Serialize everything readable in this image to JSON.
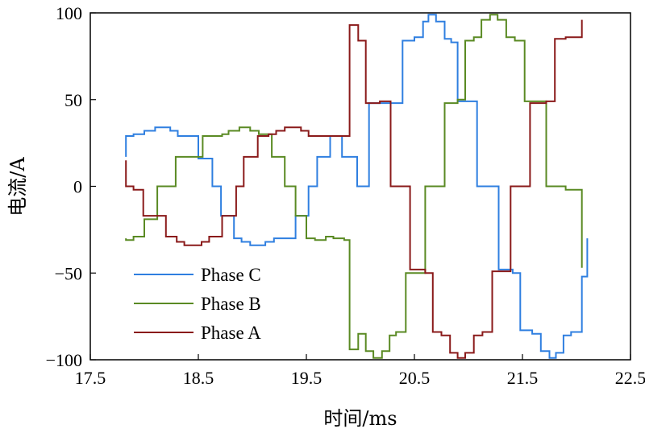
{
  "chart_data": {
    "type": "line",
    "title": "",
    "xlabel": "时间/ms",
    "ylabel": "电流/A",
    "xlim": [
      17.5,
      22.5
    ],
    "ylim": [
      -100,
      100
    ],
    "xticks": [
      "17.5",
      "18.5",
      "19.5",
      "20.5",
      "21.5",
      "22.5"
    ],
    "yticks": [
      "100",
      "50",
      "0",
      "−50",
      "−100"
    ],
    "grid": false,
    "legend_position": "bottom-left",
    "series": [
      {
        "name": "Phase C",
        "color": "#2f7fe0",
        "points": [
          [
            17.83,
            17
          ],
          [
            17.83,
            29
          ],
          [
            17.9,
            29
          ],
          [
            17.9,
            30
          ],
          [
            18.0,
            30
          ],
          [
            18.0,
            32
          ],
          [
            18.1,
            32
          ],
          [
            18.1,
            34
          ],
          [
            18.24,
            34
          ],
          [
            18.24,
            32
          ],
          [
            18.31,
            32
          ],
          [
            18.31,
            29
          ],
          [
            18.5,
            29
          ],
          [
            18.5,
            16
          ],
          [
            18.63,
            16
          ],
          [
            18.63,
            0
          ],
          [
            18.71,
            0
          ],
          [
            18.71,
            -17
          ],
          [
            18.83,
            -17
          ],
          [
            18.83,
            -30
          ],
          [
            18.9,
            -30
          ],
          [
            18.9,
            -32
          ],
          [
            18.98,
            -32
          ],
          [
            18.98,
            -34
          ],
          [
            19.12,
            -34
          ],
          [
            19.12,
            -32
          ],
          [
            19.2,
            -32
          ],
          [
            19.2,
            -30
          ],
          [
            19.4,
            -30
          ],
          [
            19.4,
            -17
          ],
          [
            19.52,
            -17
          ],
          [
            19.52,
            0
          ],
          [
            19.6,
            0
          ],
          [
            19.6,
            17
          ],
          [
            19.72,
            17
          ],
          [
            19.72,
            29
          ],
          [
            19.83,
            29
          ],
          [
            19.83,
            17
          ],
          [
            19.97,
            17
          ],
          [
            19.97,
            0
          ],
          [
            20.08,
            0
          ],
          [
            20.08,
            48
          ],
          [
            20.2,
            48
          ],
          [
            20.2,
            48
          ],
          [
            20.39,
            48
          ],
          [
            20.39,
            84
          ],
          [
            20.5,
            84
          ],
          [
            20.5,
            86
          ],
          [
            20.58,
            86
          ],
          [
            20.58,
            95
          ],
          [
            20.63,
            95
          ],
          [
            20.63,
            99
          ],
          [
            20.7,
            99
          ],
          [
            20.7,
            95
          ],
          [
            20.78,
            95
          ],
          [
            20.78,
            85
          ],
          [
            20.84,
            85
          ],
          [
            20.84,
            83
          ],
          [
            20.9,
            83
          ],
          [
            20.9,
            49
          ],
          [
            21.08,
            49
          ],
          [
            21.08,
            0
          ],
          [
            21.28,
            0
          ],
          [
            21.28,
            -48
          ],
          [
            21.41,
            -48
          ],
          [
            21.41,
            -50
          ],
          [
            21.48,
            -50
          ],
          [
            21.48,
            -83
          ],
          [
            21.59,
            -83
          ],
          [
            21.59,
            -85
          ],
          [
            21.67,
            -85
          ],
          [
            21.67,
            -95
          ],
          [
            21.75,
            -95
          ],
          [
            21.75,
            -99
          ],
          [
            21.81,
            -99
          ],
          [
            21.81,
            -96
          ],
          [
            21.88,
            -96
          ],
          [
            21.88,
            -86
          ],
          [
            21.95,
            -86
          ],
          [
            21.95,
            -84
          ],
          [
            22.05,
            -84
          ],
          [
            22.05,
            -52
          ],
          [
            22.1,
            -52
          ],
          [
            22.1,
            -30
          ]
        ]
      },
      {
        "name": "Phase B",
        "color": "#5a8a23",
        "points": [
          [
            17.83,
            -30
          ],
          [
            17.83,
            -31
          ],
          [
            17.9,
            -31
          ],
          [
            17.9,
            -29
          ],
          [
            18.0,
            -29
          ],
          [
            18.0,
            -19
          ],
          [
            18.12,
            -19
          ],
          [
            18.12,
            0
          ],
          [
            18.2,
            0
          ],
          [
            18.2,
            0
          ],
          [
            18.29,
            0
          ],
          [
            18.29,
            17
          ],
          [
            18.43,
            17
          ],
          [
            18.43,
            17
          ],
          [
            18.54,
            17
          ],
          [
            18.54,
            29
          ],
          [
            18.62,
            29
          ],
          [
            18.62,
            29
          ],
          [
            18.72,
            29
          ],
          [
            18.72,
            30
          ],
          [
            18.78,
            30
          ],
          [
            18.78,
            32
          ],
          [
            18.88,
            32
          ],
          [
            18.88,
            34
          ],
          [
            18.98,
            34
          ],
          [
            18.98,
            32
          ],
          [
            19.06,
            32
          ],
          [
            19.06,
            30
          ],
          [
            19.18,
            30
          ],
          [
            19.18,
            17
          ],
          [
            19.3,
            17
          ],
          [
            19.3,
            0
          ],
          [
            19.4,
            0
          ],
          [
            19.4,
            -17
          ],
          [
            19.5,
            -17
          ],
          [
            19.5,
            -30
          ],
          [
            19.58,
            -30
          ],
          [
            19.58,
            -31
          ],
          [
            19.68,
            -31
          ],
          [
            19.68,
            -29
          ],
          [
            19.75,
            -29
          ],
          [
            19.75,
            -30
          ],
          [
            19.85,
            -30
          ],
          [
            19.85,
            -31
          ],
          [
            19.9,
            -31
          ],
          [
            19.9,
            -94
          ],
          [
            19.98,
            -94
          ],
          [
            19.98,
            -85
          ],
          [
            20.05,
            -85
          ],
          [
            20.05,
            -95
          ],
          [
            20.12,
            -95
          ],
          [
            20.12,
            -99
          ],
          [
            20.2,
            -99
          ],
          [
            20.2,
            -95
          ],
          [
            20.27,
            -95
          ],
          [
            20.27,
            -86
          ],
          [
            20.33,
            -86
          ],
          [
            20.33,
            -84
          ],
          [
            20.42,
            -84
          ],
          [
            20.42,
            -50
          ],
          [
            20.6,
            -50
          ],
          [
            20.6,
            0
          ],
          [
            20.78,
            0
          ],
          [
            20.78,
            48
          ],
          [
            20.9,
            48
          ],
          [
            20.9,
            50
          ],
          [
            20.97,
            50
          ],
          [
            20.97,
            84
          ],
          [
            21.05,
            84
          ],
          [
            21.05,
            86
          ],
          [
            21.12,
            86
          ],
          [
            21.12,
            96
          ],
          [
            21.2,
            96
          ],
          [
            21.2,
            99
          ],
          [
            21.27,
            99
          ],
          [
            21.27,
            96
          ],
          [
            21.35,
            96
          ],
          [
            21.35,
            86
          ],
          [
            21.43,
            86
          ],
          [
            21.43,
            84
          ],
          [
            21.52,
            84
          ],
          [
            21.52,
            49
          ],
          [
            21.72,
            49
          ],
          [
            21.72,
            0
          ],
          [
            21.9,
            0
          ],
          [
            21.9,
            -2
          ],
          [
            22.05,
            -2
          ],
          [
            22.05,
            -47
          ]
        ]
      },
      {
        "name": "Phase A",
        "color": "#8a1a1a",
        "points": [
          [
            17.83,
            15
          ],
          [
            17.83,
            0
          ],
          [
            17.9,
            0
          ],
          [
            17.9,
            -2
          ],
          [
            17.99,
            -2
          ],
          [
            17.99,
            -17
          ],
          [
            18.08,
            -17
          ],
          [
            18.08,
            -17
          ],
          [
            18.2,
            -17
          ],
          [
            18.2,
            -29
          ],
          [
            18.3,
            -29
          ],
          [
            18.3,
            -32
          ],
          [
            18.37,
            -32
          ],
          [
            18.37,
            -34
          ],
          [
            18.53,
            -34
          ],
          [
            18.53,
            -32
          ],
          [
            18.6,
            -32
          ],
          [
            18.6,
            -29
          ],
          [
            18.72,
            -29
          ],
          [
            18.72,
            -17
          ],
          [
            18.85,
            -17
          ],
          [
            18.85,
            0
          ],
          [
            18.92,
            0
          ],
          [
            18.92,
            17
          ],
          [
            19.05,
            17
          ],
          [
            19.05,
            29
          ],
          [
            19.15,
            29
          ],
          [
            19.15,
            30
          ],
          [
            19.22,
            30
          ],
          [
            19.22,
            32
          ],
          [
            19.3,
            32
          ],
          [
            19.3,
            34
          ],
          [
            19.45,
            34
          ],
          [
            19.45,
            32
          ],
          [
            19.52,
            32
          ],
          [
            19.52,
            29
          ],
          [
            19.63,
            29
          ],
          [
            19.63,
            29
          ],
          [
            19.75,
            29
          ],
          [
            19.75,
            29
          ],
          [
            19.87,
            29
          ],
          [
            19.87,
            29
          ],
          [
            19.9,
            29
          ],
          [
            19.9,
            93
          ],
          [
            19.98,
            93
          ],
          [
            19.98,
            84
          ],
          [
            20.05,
            84
          ],
          [
            20.05,
            48
          ],
          [
            20.18,
            48
          ],
          [
            20.18,
            49
          ],
          [
            20.28,
            49
          ],
          [
            20.28,
            0
          ],
          [
            20.46,
            0
          ],
          [
            20.46,
            -48
          ],
          [
            20.6,
            -48
          ],
          [
            20.6,
            -50
          ],
          [
            20.67,
            -50
          ],
          [
            20.67,
            -84
          ],
          [
            20.75,
            -84
          ],
          [
            20.75,
            -86
          ],
          [
            20.83,
            -86
          ],
          [
            20.83,
            -96
          ],
          [
            20.9,
            -96
          ],
          [
            20.9,
            -99
          ],
          [
            20.97,
            -99
          ],
          [
            20.97,
            -96
          ],
          [
            21.05,
            -96
          ],
          [
            21.05,
            -86
          ],
          [
            21.13,
            -86
          ],
          [
            21.13,
            -84
          ],
          [
            21.22,
            -84
          ],
          [
            21.22,
            -49
          ],
          [
            21.39,
            -49
          ],
          [
            21.39,
            0
          ],
          [
            21.57,
            0
          ],
          [
            21.57,
            48
          ],
          [
            21.72,
            48
          ],
          [
            21.72,
            49
          ],
          [
            21.8,
            49
          ],
          [
            21.8,
            85
          ],
          [
            21.9,
            85
          ],
          [
            21.9,
            86
          ],
          [
            22.05,
            86
          ],
          [
            22.05,
            96
          ]
        ]
      }
    ]
  }
}
